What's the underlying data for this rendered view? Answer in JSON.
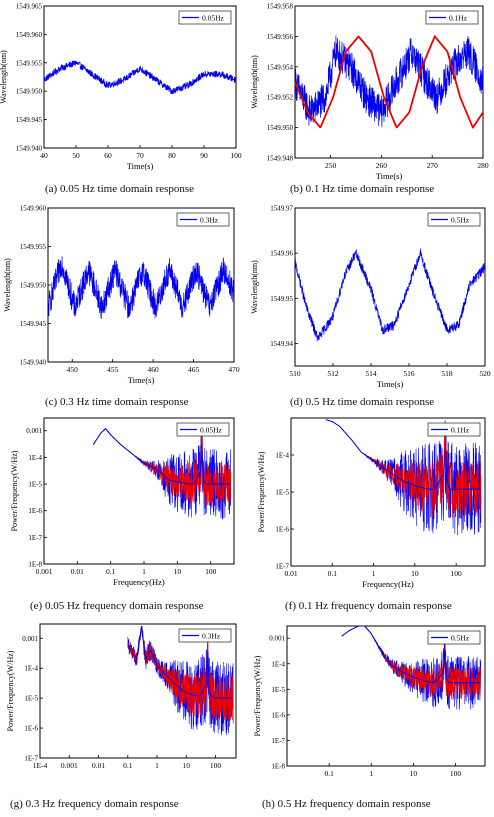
{
  "colors": {
    "signal": "#0000ee",
    "fit": "#ee0000",
    "axis": "#000000"
  },
  "captions": [
    "(a) 0.05 Hz time domain response",
    "(b) 0.1 Hz time domain response",
    "(c) 0.3 Hz time domain response",
    "(d) 0.5 Hz time domain response",
    "(e) 0.05 Hz frequency domain response",
    "(f) 0.1 Hz frequency domain response",
    "(g) 0.3 Hz frequency domain response",
    "(h) 0.5 Hz frequency domain response"
  ],
  "chart_data": [
    {
      "type": "line",
      "xlabel": "Time(s)",
      "ylabel": "Wavelength(nm)",
      "legend": [
        "0.05Hz"
      ],
      "legend_position": "top-right",
      "xlim": [
        40,
        100
      ],
      "ylim": [
        1549.94,
        1549.965
      ],
      "xticks": [
        40,
        50,
        60,
        70,
        80,
        90,
        100
      ],
      "ytick_labels": [
        "1549.940",
        "1549.945",
        "1549.950",
        "1549.955",
        "1549.960",
        "1549.965"
      ],
      "series": [
        {
          "name": "0.05Hz",
          "x": [
            40,
            45,
            50,
            55,
            60,
            65,
            70,
            75,
            80,
            85,
            90,
            95,
            100
          ],
          "y": [
            1549.952,
            1549.954,
            1549.955,
            1549.953,
            1549.951,
            1549.952,
            1549.954,
            1549.952,
            1549.95,
            1549.951,
            1549.953,
            1549.953,
            1549.952
          ],
          "noise": 0.0012
        }
      ]
    },
    {
      "type": "line",
      "xlabel": "Time(s)",
      "ylabel": "Wavelength(nm)",
      "legend": [
        "0.1Hz"
      ],
      "legend_position": "top-right",
      "xlim": [
        243,
        280
      ],
      "ylim": [
        1549.948,
        1549.958
      ],
      "xticks": [
        250,
        260,
        270,
        280
      ],
      "ytick_labels": [
        "1549.948",
        "1549.950",
        "1549.952",
        "1549.954",
        "1549.956",
        "1549.958"
      ],
      "series": [
        {
          "name": "0.1Hz",
          "x": [
            243,
            246,
            249,
            251,
            254,
            257,
            260,
            263,
            266,
            269,
            271,
            274,
            277,
            280
          ],
          "y": [
            1549.953,
            1549.951,
            1549.952,
            1549.955,
            1549.954,
            1549.952,
            1549.951,
            1549.953,
            1549.955,
            1549.953,
            1549.952,
            1549.954,
            1549.955,
            1549.953
          ],
          "noise": 0.0022
        },
        {
          "name": "",
          "fit": true,
          "x": [
            243,
            245.5,
            248,
            250.5,
            253,
            255.5,
            258,
            260.5,
            263,
            265.5,
            268,
            270.5,
            273,
            275.5,
            278,
            280
          ],
          "y": [
            1549.953,
            1549.951,
            1549.95,
            1549.952,
            1549.955,
            1549.956,
            1549.955,
            1549.952,
            1549.95,
            1549.951,
            1549.954,
            1549.956,
            1549.955,
            1549.952,
            1549.95,
            1549.951
          ]
        }
      ]
    },
    {
      "type": "line",
      "xlabel": "Time(s)",
      "ylabel": "Wavelength(nm)",
      "legend": [
        "0.3Hz"
      ],
      "legend_position": "top-right",
      "xlim": [
        447,
        470
      ],
      "ylim": [
        1549.94,
        1549.96
      ],
      "xticks": [
        450,
        455,
        460,
        465,
        470
      ],
      "ytick_labels": [
        "1549.940",
        "1549.945",
        "1549.950",
        "1549.955",
        "1549.960"
      ],
      "series": [
        {
          "name": "0.3Hz",
          "x": [
            447,
            448.7,
            450.3,
            452,
            453.7,
            455.3,
            457,
            458.7,
            460.3,
            462,
            463.7,
            465.3,
            467,
            468.7,
            470
          ],
          "y": [
            1549.947,
            1549.953,
            1549.947,
            1549.952,
            1549.947,
            1549.952,
            1549.947,
            1549.952,
            1549.947,
            1549.952,
            1549.947,
            1549.952,
            1549.947,
            1549.952,
            1549.949
          ],
          "noise": 0.0035
        }
      ]
    },
    {
      "type": "line",
      "xlabel": "Time(s)",
      "ylabel": "Wavelength(nm)",
      "legend": [
        "0.5Hz"
      ],
      "legend_position": "top-right",
      "xlim": [
        510,
        520
      ],
      "ylim": [
        1549.935,
        1549.97
      ],
      "xticks": [
        510,
        512,
        514,
        516,
        518,
        520
      ],
      "ytick_labels": [
        "1549.94",
        "1549.95",
        "1549.96",
        "1549.97"
      ],
      "series": [
        {
          "name": "0.5Hz",
          "x": [
            510,
            510.6,
            511.2,
            512,
            512.6,
            513.2,
            514,
            514.6,
            515.2,
            516,
            516.6,
            517.2,
            518,
            518.6,
            519.2,
            520
          ],
          "y": [
            1549.958,
            1549.948,
            1549.941,
            1549.946,
            1549.955,
            1549.96,
            1549.952,
            1549.943,
            1549.944,
            1549.953,
            1549.96,
            1549.952,
            1549.943,
            1549.944,
            1549.953,
            1549.957
          ],
          "noise": 0.0022
        }
      ]
    },
    {
      "type": "line",
      "xlabel": "Frequency(Hz)",
      "ylabel": "Power/Frequency(W/Hz)",
      "xscale": "log",
      "yscale": "log",
      "legend": [
        "0.05Hz"
      ],
      "legend_position": "top-right",
      "xlim": [
        0.001,
        500
      ],
      "ylim": [
        1e-08,
        0.003
      ],
      "xtick_labels": [
        "0.001",
        "0.01",
        "0.1",
        "1",
        "10",
        "100"
      ],
      "ytick_labels": [
        "1E-8",
        "1E-7",
        "1E-6",
        "1E-5",
        "1E-4",
        "0.001"
      ],
      "series": [
        {
          "name": "0.05Hz",
          "x": [
            0.03,
            0.05,
            0.07,
            0.1,
            0.2,
            0.5,
            1,
            2,
            3,
            5,
            10,
            20,
            30,
            50,
            55,
            60,
            70,
            100,
            200,
            400
          ],
          "y": [
            0.0003,
            0.0008,
            0.0012,
            0.0007,
            0.0003,
            0.00012,
            6e-05,
            4e-05,
            3e-05,
            1.5e-05,
            1.2e-05,
            1e-05,
            1e-05,
            3e-05,
            0.00018,
            1.5e-05,
            1e-05,
            1e-05,
            1e-05,
            1e-05
          ],
          "spread": [
            1,
            1,
            1,
            1,
            1,
            1,
            1.3,
            2,
            3,
            10,
            20,
            30,
            30,
            30,
            30,
            30,
            30,
            30,
            30,
            30
          ]
        }
      ]
    },
    {
      "type": "line",
      "xlabel": "Frequency(Hz)",
      "ylabel": "Power/Frequency(W/Hz)",
      "xscale": "log",
      "yscale": "log",
      "legend": [
        "0.1Hz"
      ],
      "legend_position": "top-right",
      "xlim": [
        0.01,
        500
      ],
      "ylim": [
        1e-07,
        0.001
      ],
      "xtick_labels": [
        "0.01",
        "0.1",
        "1",
        "10",
        "100"
      ],
      "ytick_labels": [
        "1E-7",
        "1E-6",
        "1E-5",
        "1E-4"
      ],
      "series": [
        {
          "name": "0.1Hz",
          "x": [
            0.07,
            0.1,
            0.15,
            0.3,
            0.5,
            1,
            2,
            3,
            5,
            10,
            20,
            30,
            50,
            55,
            60,
            70,
            100,
            200,
            400
          ],
          "y": [
            0.0009,
            0.0008,
            0.0006,
            0.00025,
            0.00012,
            7e-05,
            4e-05,
            3e-05,
            2e-05,
            1.5e-05,
            1.2e-05,
            1.2e-05,
            3e-05,
            0.00015,
            2e-05,
            1.2e-05,
            1.2e-05,
            1.2e-05,
            1.2e-05
          ],
          "spread": [
            1,
            1,
            1,
            1,
            1,
            1.2,
            2,
            3,
            8,
            15,
            25,
            25,
            25,
            25,
            25,
            25,
            25,
            25,
            25
          ]
        }
      ]
    },
    {
      "type": "line",
      "xlabel": "",
      "ylabel": "Power/Frequency(W/Hz)",
      "xscale": "log",
      "yscale": "log",
      "legend": [
        "0.3Hz"
      ],
      "legend_position": "top-right",
      "xlim": [
        0.0001,
        500
      ],
      "ylim": [
        1e-07,
        0.003
      ],
      "xtick_labels": [
        "1E-4",
        "0.001",
        "0.01",
        "0.1",
        "1",
        "10",
        "100"
      ],
      "ytick_labels": [
        "1E-7",
        "1E-6",
        "1E-5",
        "1E-4",
        "0.001"
      ],
      "series": [
        {
          "name": "0.3Hz",
          "x": [
            0.1,
            0.2,
            0.3,
            0.4,
            0.6,
            1,
            2,
            3,
            5,
            10,
            20,
            30,
            50,
            55,
            60,
            70,
            100,
            200,
            400
          ],
          "y": [
            0.0006,
            0.0002,
            0.0025,
            0.0002,
            0.0004,
            0.00012,
            6e-05,
            4e-05,
            2.5e-05,
            1.5e-05,
            1.2e-05,
            1.2e-05,
            3e-05,
            0.00035,
            2e-05,
            1.2e-05,
            1e-05,
            1e-05,
            1e-05
          ],
          "spread": [
            2,
            2,
            1.5,
            3,
            3,
            2,
            3,
            5,
            10,
            15,
            25,
            25,
            25,
            25,
            25,
            25,
            25,
            25,
            25
          ]
        }
      ]
    },
    {
      "type": "line",
      "xlabel": "",
      "ylabel": "Power/Frequency(W/Hz)",
      "xscale": "log",
      "yscale": "log",
      "legend": [
        "0.5Hz"
      ],
      "legend_position": "top-right",
      "xlim": [
        0.01,
        500
      ],
      "ylim": [
        1e-08,
        0.003
      ],
      "xtick_labels": [
        "0.1",
        "1",
        "10",
        "100"
      ],
      "ytick_labels": [
        "1E-8",
        "1E-7",
        "1E-6",
        "1E-5",
        "1E-4",
        "0.001"
      ],
      "series": [
        {
          "name": "0.5Hz",
          "x": [
            0.2,
            0.3,
            0.5,
            0.7,
            1,
            2,
            3,
            5,
            10,
            20,
            30,
            50,
            55,
            60,
            70,
            100,
            200,
            400
          ],
          "y": [
            0.0012,
            0.002,
            0.003,
            0.003,
            0.0015,
            0.0002,
            9e-05,
            5e-05,
            3e-05,
            2e-05,
            1.8e-05,
            4e-05,
            0.0003,
            2.5e-05,
            1.8e-05,
            1.8e-05,
            1.8e-05,
            1.8e-05
          ],
          "spread": [
            1,
            1,
            1,
            1,
            1,
            1.5,
            2,
            3,
            6,
            10,
            15,
            15,
            15,
            15,
            15,
            15,
            15,
            15
          ]
        }
      ]
    }
  ]
}
